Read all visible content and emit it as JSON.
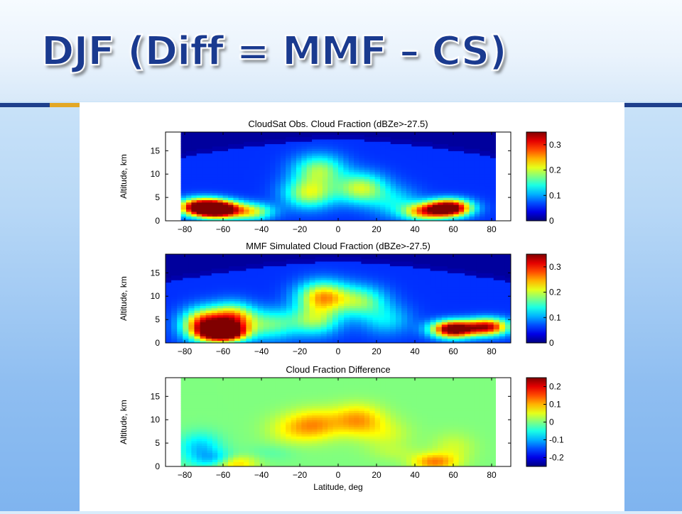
{
  "slide": {
    "title": "DJF (Diff = MMF – CS)"
  },
  "chart_data": [
    {
      "type": "heatmap",
      "title": "CloudSat Obs. Cloud Fraction (dBZe>-27.5)",
      "xlabel": "",
      "ylabel": "Altitude, km",
      "x_ticks": [
        -80,
        -60,
        -40,
        -20,
        0,
        20,
        40,
        60,
        80
      ],
      "y_ticks": [
        0,
        5,
        10,
        15
      ],
      "xlim": [
        -90,
        90
      ],
      "ylim": [
        0,
        19
      ],
      "data_lat_range": [
        -82,
        82
      ],
      "colormap": "jet",
      "colorbar_range": [
        0,
        0.35
      ],
      "colorbar_ticks": [
        "0",
        "0.1",
        "0.2",
        "0.3"
      ],
      "features": [
        {
          "lat": -62,
          "alt": 2.5,
          "value": 0.34
        },
        {
          "lat": -72,
          "alt": 3,
          "value": 0.3
        },
        {
          "lat": -45,
          "alt": 2,
          "value": 0.14
        },
        {
          "lat": -15,
          "alt": 6,
          "value": 0.14
        },
        {
          "lat": -10,
          "alt": 11,
          "value": 0.12
        },
        {
          "lat": 12,
          "alt": 7,
          "value": 0.14
        },
        {
          "lat": 30,
          "alt": 4,
          "value": 0.06
        },
        {
          "lat": 58,
          "alt": 2.8,
          "value": 0.34
        },
        {
          "lat": 45,
          "alt": 2,
          "value": 0.18
        }
      ]
    },
    {
      "type": "heatmap",
      "title": "MMF Simulated Cloud Fraction (dBZe>-27.5)",
      "xlabel": "",
      "ylabel": "Altitude, km",
      "x_ticks": [
        -80,
        -60,
        -40,
        -20,
        0,
        20,
        40,
        60,
        80
      ],
      "y_ticks": [
        0,
        5,
        10,
        15
      ],
      "xlim": [
        -90,
        90
      ],
      "ylim": [
        0,
        19
      ],
      "data_lat_range": [
        -90,
        90
      ],
      "colormap": "jet",
      "colorbar_range": [
        0,
        0.35
      ],
      "colorbar_ticks": [
        "0",
        "0.1",
        "0.2",
        "0.3"
      ],
      "features": [
        {
          "lat": -60,
          "alt": 2.2,
          "value": 0.32
        },
        {
          "lat": -70,
          "alt": 4,
          "value": 0.24
        },
        {
          "lat": -55,
          "alt": 5,
          "value": 0.22
        },
        {
          "lat": -35,
          "alt": 4,
          "value": 0.1
        },
        {
          "lat": -8,
          "alt": 10,
          "value": 0.18
        },
        {
          "lat": -12,
          "alt": 5,
          "value": 0.12
        },
        {
          "lat": 25,
          "alt": 5,
          "value": 0.06
        },
        {
          "lat": 12,
          "alt": 9,
          "value": 0.11
        },
        {
          "lat": 60,
          "alt": 3,
          "value": 0.33
        },
        {
          "lat": 78,
          "alt": 3.5,
          "value": 0.26
        }
      ]
    },
    {
      "type": "heatmap",
      "title": "Cloud Fraction Difference",
      "xlabel": "Latitude, deg",
      "ylabel": "Altitude, km",
      "x_ticks": [
        -80,
        -60,
        -40,
        -20,
        0,
        20,
        40,
        60,
        80
      ],
      "y_ticks": [
        0,
        5,
        10,
        15
      ],
      "xlim": [
        -90,
        90
      ],
      "ylim": [
        0,
        19
      ],
      "data_lat_range": [
        -82,
        82
      ],
      "colormap": "jet",
      "colorbar_range": [
        -0.25,
        0.25
      ],
      "colorbar_ticks": [
        "-0.2",
        "-0.1",
        "0",
        "0.1",
        "0.2"
      ],
      "features": [
        {
          "lat": -12,
          "alt": 9,
          "value": 0.1
        },
        {
          "lat": 10,
          "alt": 10,
          "value": 0.11
        },
        {
          "lat": -25,
          "alt": 8,
          "value": 0.05
        },
        {
          "lat": 25,
          "alt": 7,
          "value": 0.04
        },
        {
          "lat": -72,
          "alt": 4,
          "value": -0.09
        },
        {
          "lat": -62,
          "alt": 1.5,
          "value": -0.1
        },
        {
          "lat": -35,
          "alt": 3,
          "value": -0.02
        },
        {
          "lat": 30,
          "alt": 3,
          "value": 0.02
        },
        {
          "lat": 60,
          "alt": 4,
          "value": 0.04
        },
        {
          "lat": 50,
          "alt": 1,
          "value": 0.12
        },
        {
          "lat": -55,
          "alt": 0.8,
          "value": 0.12
        }
      ]
    }
  ]
}
